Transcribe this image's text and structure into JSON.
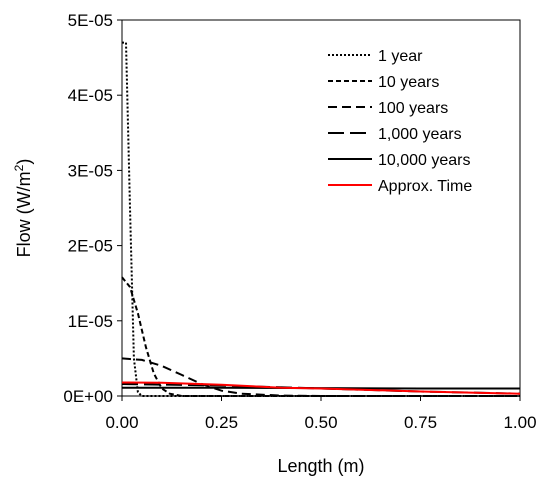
{
  "chart_data": {
    "type": "line",
    "xlabel": "Length (m)",
    "ylabel_main": "Flow (W/m",
    "ylabel_sup": "2",
    "ylabel_close": ")",
    "xlim": [
      0,
      1
    ],
    "ylim": [
      0,
      5e-05
    ],
    "x_ticks": [
      "0.00",
      "0.25",
      "0.50",
      "0.75",
      "1.00"
    ],
    "y_ticks": [
      "0E+00",
      "1E-05",
      "2E-05",
      "3E-05",
      "4E-05",
      "5E-05"
    ],
    "grid": false,
    "legend_position": "top-right",
    "series": [
      {
        "name": "1 year",
        "color": "#000000",
        "style": "dotted",
        "x": [
          0.0,
          0.01,
          0.02,
          0.03,
          0.04,
          0.05,
          0.1,
          1.0
        ],
        "y": [
          4.7e-05,
          4.7e-05,
          2.5e-05,
          5e-06,
          5e-07,
          0,
          0,
          0
        ]
      },
      {
        "name": "10 years",
        "color": "#000000",
        "style": "short-dash",
        "x": [
          0.0,
          0.02,
          0.04,
          0.06,
          0.08,
          0.1,
          0.12,
          0.15,
          1.0
        ],
        "y": [
          1.58e-05,
          1.45e-05,
          1.1e-05,
          6.5e-06,
          3e-06,
          1e-06,
          3e-07,
          0,
          0
        ]
      },
      {
        "name": "100 years",
        "color": "#000000",
        "style": "dash",
        "x": [
          0.0,
          0.05,
          0.1,
          0.15,
          0.2,
          0.25,
          0.3,
          0.4,
          0.5,
          1.0
        ],
        "y": [
          5e-06,
          4.8e-06,
          4e-06,
          2.8e-06,
          1.6e-06,
          7e-07,
          3e-07,
          5e-08,
          0,
          0
        ]
      },
      {
        "name": "1,000 years",
        "color": "#000000",
        "style": "long-dash",
        "x": [
          0.0,
          0.25,
          0.5,
          0.75,
          1.0
        ],
        "y": [
          1.6e-06,
          1.4e-06,
          1e-06,
          6e-07,
          3e-07
        ]
      },
      {
        "name": "10,000 years",
        "color": "#000000",
        "style": "solid",
        "x": [
          0.0,
          0.25,
          0.5,
          0.75,
          1.0
        ],
        "y": [
          1.1e-06,
          1.1e-06,
          1.05e-06,
          1e-06,
          1e-06
        ]
      },
      {
        "name": "Approx. Time",
        "color": "#ff0000",
        "style": "solid",
        "x": [
          0.0,
          0.1,
          0.25,
          0.4,
          0.5,
          0.75,
          1.0
        ],
        "y": [
          1.8e-06,
          1.75e-06,
          1.5e-06,
          1.1e-06,
          1e-06,
          6e-07,
          3e-07
        ]
      }
    ]
  }
}
